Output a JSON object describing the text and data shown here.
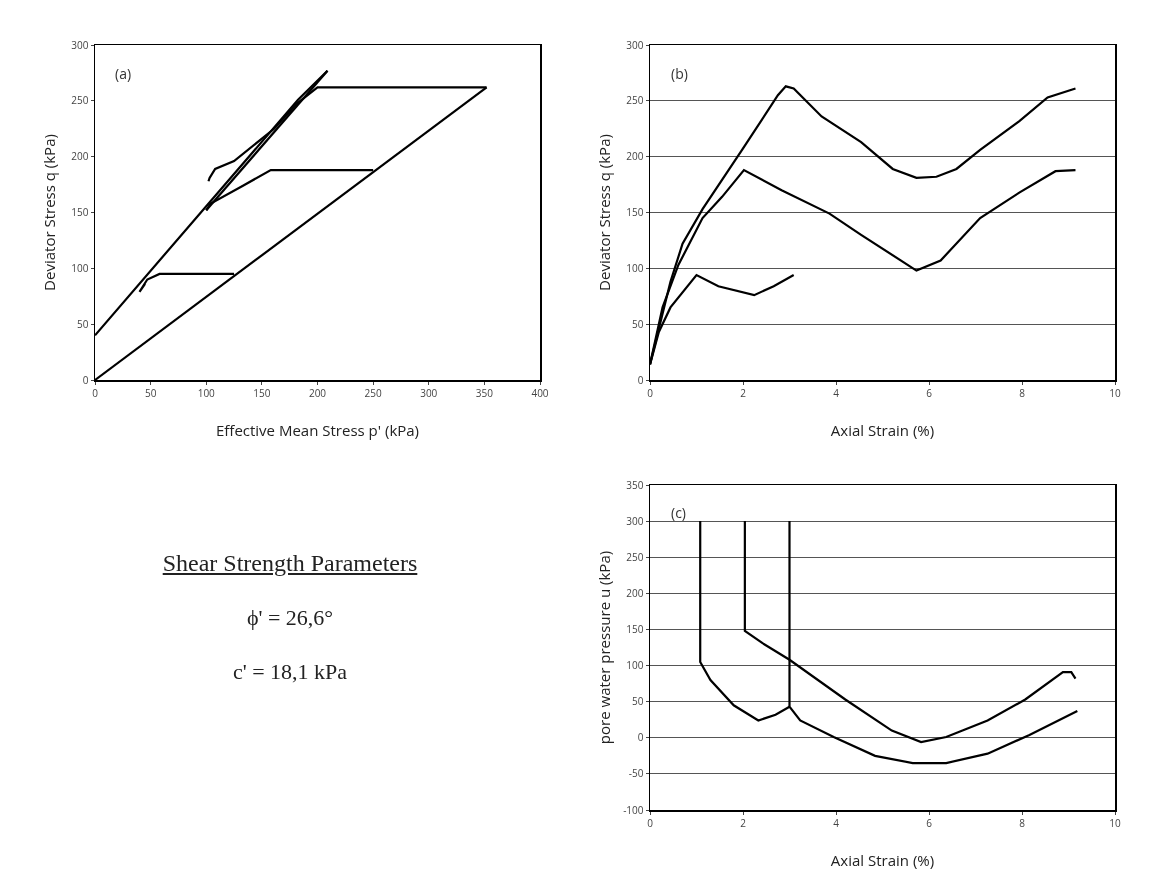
{
  "chart_data": [
    {
      "type": "line",
      "xlabel": "Effective Mean Stress p' (kPa)",
      "ylabel": "Deviator Stress q (kPa)",
      "annotations": [
        "(a)"
      ],
      "xlim": [
        0,
        400
      ],
      "ylim": [
        0,
        300
      ],
      "xticks": [
        0,
        50,
        100,
        150,
        200,
        250,
        300,
        350,
        400
      ],
      "yticks": [
        0,
        50,
        100,
        150,
        200,
        250,
        300
      ],
      "grid": false,
      "series": [
        {
          "color": "#000000",
          "x": [
            0,
            352
          ],
          "values": [
            0,
            262
          ]
        },
        {
          "color": "#000000",
          "x": [
            0,
            182.5,
            209
          ],
          "values": [
            40,
            251,
            277
          ]
        },
        {
          "color": "#000000",
          "x": [
            100,
            209
          ],
          "values": [
            152,
            277
          ]
        },
        {
          "color": "#000000",
          "x": [
            125,
            58,
            47,
            40,
            45
          ],
          "values": [
            95,
            95,
            90,
            79,
            86
          ]
        },
        {
          "color": "#000000",
          "x": [
            250,
            158,
            133,
            104,
            100
          ],
          "values": [
            188,
            188,
            174,
            158,
            152
          ]
        },
        {
          "color": "#000000",
          "x": [
            352,
            200,
            182,
            161,
            125,
            108,
            103,
            102
          ],
          "values": [
            262,
            262,
            248,
            225,
            196,
            189,
            181,
            178
          ]
        }
      ]
    },
    {
      "type": "line",
      "xlabel": "Axial Strain (%)",
      "ylabel": "Deviator Stress q (kPa)",
      "annotations": [
        "(b)"
      ],
      "xlim": [
        0,
        10
      ],
      "ylim": [
        0,
        300
      ],
      "xticks": [
        0,
        2,
        4,
        6,
        8,
        10
      ],
      "yticks": [
        0,
        50,
        100,
        150,
        200,
        250,
        300
      ],
      "grid": "y",
      "series": [
        {
          "color": "#000000",
          "x": [
            0,
            0.19,
            0.44,
            0.7,
            1.13,
            1.98,
            2.75,
            2.92,
            3.09,
            3.69,
            4.54,
            5.22,
            5.73,
            6.16,
            6.59,
            7.1,
            7.95,
            8.55,
            9.15
          ],
          "values": [
            14,
            46,
            88,
            122,
            153,
            206,
            255,
            263,
            261,
            236,
            213,
            189,
            181,
            182,
            189,
            206,
            232,
            253,
            261
          ]
        },
        {
          "color": "#000000",
          "x": [
            0,
            0.27,
            0.61,
            1.13,
            1.55,
            2.02,
            2.83,
            3.86,
            4.54,
            5.73,
            6.25,
            7.1,
            7.95,
            8.72,
            9.15
          ],
          "values": [
            14,
            65,
            103,
            145,
            164,
            188,
            170,
            149,
            130,
            98,
            107,
            145,
            168,
            187,
            188
          ]
        },
        {
          "color": "#000000",
          "x": [
            0,
            0.19,
            0.44,
            1.0,
            1.47,
            2.24,
            2.66,
            3.09
          ],
          "values": [
            14,
            43,
            65,
            94,
            84,
            76,
            84,
            94
          ]
        }
      ]
    },
    {
      "type": "other",
      "title": "Shear Strength Parameters",
      "annotations": [
        "ϕ' = 26,6°",
        "c' = 18,1 kPa"
      ]
    },
    {
      "type": "line",
      "xlabel": "Axial Strain (%)",
      "ylabel": "pore water pressure u (kPa)",
      "annotations": [
        "(c)"
      ],
      "xlim": [
        0,
        10
      ],
      "ylim": [
        -100,
        350
      ],
      "xticks": [
        0,
        2,
        4,
        6,
        8,
        10
      ],
      "yticks": [
        -100,
        -50,
        0,
        50,
        100,
        150,
        200,
        250,
        300,
        350
      ],
      "grid": "y",
      "series": [
        {
          "color": "#000000",
          "x": [
            1.08,
            1.08,
            1.3,
            1.8,
            2.33,
            2.7,
            3.0
          ],
          "values": [
            300,
            105,
            80,
            45,
            24,
            32,
            43
          ]
        },
        {
          "color": "#000000",
          "x": [
            2.04,
            2.04,
            2.42,
            3.0,
            4.2,
            5.2,
            5.83,
            6.37,
            7.26,
            8.07,
            8.88,
            9.06,
            9.15
          ],
          "values": [
            300,
            148,
            131,
            108,
            53,
            10,
            -6,
            1,
            24,
            53,
            91,
            91,
            82
          ]
        },
        {
          "color": "#000000",
          "x": [
            3.0,
            3.0,
            3.23,
            3.95,
            4.84,
            5.65,
            6.37,
            7.26,
            8.16,
            9.19
          ],
          "values": [
            300,
            43,
            24,
            1,
            -25,
            -35,
            -35,
            -22,
            4,
            37
          ]
        }
      ]
    }
  ]
}
